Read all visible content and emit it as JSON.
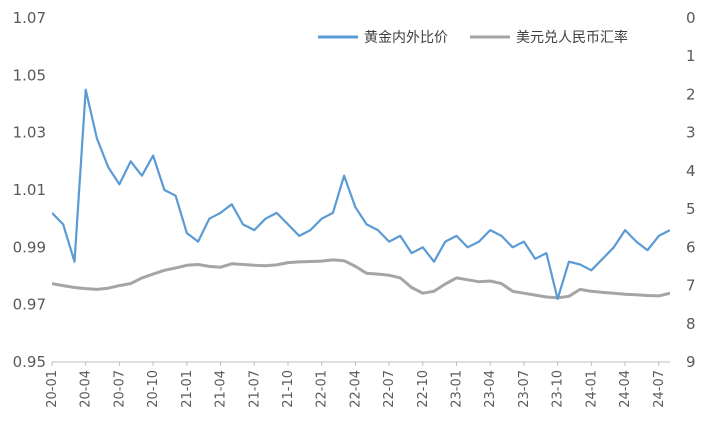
{
  "chart_data": {
    "type": "line",
    "title": "",
    "xlabel": "",
    "ylabel": "",
    "y2label": "",
    "ylim": [
      0.95,
      1.07
    ],
    "y2lim": [
      0,
      9
    ],
    "y2_inverted": true,
    "y_ticks": [
      "0.95",
      "0.97",
      "0.99",
      "1.01",
      "1.03",
      "1.05",
      "1.07"
    ],
    "y2_ticks": [
      "0",
      "1",
      "2",
      "3",
      "4",
      "5",
      "6",
      "7",
      "8",
      "9"
    ],
    "x_ticks": [
      "20-01",
      "20-04",
      "20-07",
      "20-10",
      "21-01",
      "21-04",
      "21-07",
      "21-10",
      "22-01",
      "22-04",
      "22-07",
      "22-10",
      "23-01",
      "23-04",
      "23-07",
      "23-10",
      "24-01",
      "24-04",
      "24-07"
    ],
    "legend_position": "top-right",
    "grid": false,
    "series": [
      {
        "name": "黄金内外比价",
        "axis": "left",
        "color": "#5B9BD5",
        "x": [
          "20-01",
          "20-02",
          "20-03",
          "20-04",
          "20-05",
          "20-06",
          "20-07",
          "20-08",
          "20-09",
          "20-10",
          "20-11",
          "20-12",
          "21-01",
          "21-02",
          "21-03",
          "21-04",
          "21-05",
          "21-06",
          "21-07",
          "21-08",
          "21-09",
          "21-10",
          "21-11",
          "21-12",
          "22-01",
          "22-02",
          "22-03",
          "22-04",
          "22-05",
          "22-06",
          "22-07",
          "22-08",
          "22-09",
          "22-10",
          "22-11",
          "22-12",
          "23-01",
          "23-02",
          "23-03",
          "23-04",
          "23-05",
          "23-06",
          "23-07",
          "23-08",
          "23-09",
          "23-10",
          "23-11",
          "23-12",
          "24-01",
          "24-02",
          "24-03",
          "24-04",
          "24-05",
          "24-06",
          "24-07",
          "24-08"
        ],
        "values": [
          1.002,
          0.998,
          0.985,
          1.045,
          1.028,
          1.018,
          1.012,
          1.02,
          1.015,
          1.022,
          1.01,
          1.008,
          0.995,
          0.992,
          1.0,
          1.002,
          1.005,
          0.998,
          0.996,
          1.0,
          1.002,
          0.998,
          0.994,
          0.996,
          1.0,
          1.002,
          1.015,
          1.004,
          0.998,
          0.996,
          0.992,
          0.994,
          0.988,
          0.99,
          0.985,
          0.992,
          0.994,
          0.99,
          0.992,
          0.996,
          0.994,
          0.99,
          0.992,
          0.986,
          0.988,
          0.972,
          0.985,
          0.984,
          0.982,
          0.986,
          0.99,
          0.996,
          0.992,
          0.989,
          0.994,
          0.996
        ]
      },
      {
        "name": "美元兑人民币汇率",
        "axis": "right",
        "color": "#A5A5A5",
        "x": [
          "20-01",
          "20-02",
          "20-03",
          "20-04",
          "20-05",
          "20-06",
          "20-07",
          "20-08",
          "20-09",
          "20-10",
          "20-11",
          "20-12",
          "21-01",
          "21-02",
          "21-03",
          "21-04",
          "21-05",
          "21-06",
          "21-07",
          "21-08",
          "21-09",
          "21-10",
          "21-11",
          "21-12",
          "22-01",
          "22-02",
          "22-03",
          "22-04",
          "22-05",
          "22-06",
          "22-07",
          "22-08",
          "22-09",
          "22-10",
          "22-11",
          "22-12",
          "23-01",
          "23-02",
          "23-03",
          "23-04",
          "23-05",
          "23-06",
          "23-07",
          "23-08",
          "23-09",
          "23-10",
          "23-11",
          "23-12",
          "24-01",
          "24-02",
          "24-03",
          "24-04",
          "24-05",
          "24-06",
          "24-07",
          "24-08"
        ],
        "values": [
          6.95,
          7.0,
          7.05,
          7.08,
          7.1,
          7.07,
          7.0,
          6.95,
          6.8,
          6.7,
          6.6,
          6.54,
          6.47,
          6.45,
          6.5,
          6.52,
          6.43,
          6.45,
          6.47,
          6.48,
          6.46,
          6.4,
          6.38,
          6.37,
          6.36,
          6.33,
          6.35,
          6.5,
          6.68,
          6.7,
          6.73,
          6.8,
          7.05,
          7.2,
          7.15,
          6.96,
          6.8,
          6.85,
          6.9,
          6.88,
          6.95,
          7.15,
          7.2,
          7.25,
          7.3,
          7.32,
          7.28,
          7.1,
          7.15,
          7.18,
          7.2,
          7.23,
          7.24,
          7.26,
          7.27,
          7.2
        ]
      }
    ]
  }
}
